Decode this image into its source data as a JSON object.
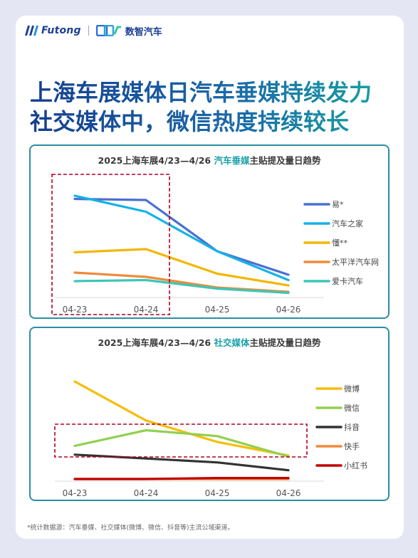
{
  "header": {
    "brand1": "Futong",
    "brand2": "数智汽车"
  },
  "title": {
    "line1": "上海车展媒体日汽车垂媒持续发力",
    "line2": "社交媒体中，微信热度持续较长"
  },
  "footnote": "*统计数据源：汽车垂媒、社交媒体(微博、微信、抖音等)主流公域渠道。",
  "chart_data": [
    {
      "type": "line",
      "title_prefix": "2025上海车展4/23—4/26 ",
      "title_highlight": "汽车垂媒",
      "title_suffix": "主贴提及量日趋势",
      "categories": [
        "04-23",
        "04-24",
        "04-25",
        "04-26"
      ],
      "ylim": [
        0,
        100
      ],
      "grid": false,
      "legend_position": "right",
      "highlight_box": [
        "04-23",
        "04-24"
      ],
      "series": [
        {
          "name": "易*",
          "color": "#4a6fd0",
          "values": [
            89,
            88,
            40,
            18
          ]
        },
        {
          "name": "汽车之家",
          "color": "#15b2e8",
          "values": [
            92,
            77,
            40,
            13
          ]
        },
        {
          "name": "懂**",
          "color": "#f2b705",
          "values": [
            39,
            42,
            19,
            8
          ]
        },
        {
          "name": "太平洋汽车网",
          "color": "#ef8a3a",
          "values": [
            20,
            16,
            6,
            2
          ]
        },
        {
          "name": "爱卡汽车",
          "color": "#3cc6b8",
          "values": [
            12,
            13,
            5,
            1
          ]
        }
      ]
    },
    {
      "type": "line",
      "title_prefix": "2025上海车展4/23—4/26 ",
      "title_highlight": "社交媒体",
      "title_suffix": "主贴提及量日趋势",
      "categories": [
        "04-23",
        "04-24",
        "04-25",
        "04-26"
      ],
      "ylim": [
        0,
        100
      ],
      "grid": false,
      "legend_position": "right",
      "highlight_box": [
        "04-23",
        "04-26"
      ],
      "series": [
        {
          "name": "微博",
          "color": "#f5be0b",
          "values": [
            100,
            60,
            38,
            24
          ]
        },
        {
          "name": "微信",
          "color": "#92d050",
          "values": [
            34,
            50,
            44,
            23
          ]
        },
        {
          "name": "抖音",
          "color": "#333333",
          "values": [
            25,
            21,
            17,
            9
          ]
        },
        {
          "name": "快手",
          "color": "#ef8a3a",
          "values": [
            0,
            0,
            0,
            0
          ]
        },
        {
          "name": "小红书",
          "color": "#c00000",
          "values": [
            0,
            0,
            1,
            1
          ]
        }
      ]
    }
  ]
}
